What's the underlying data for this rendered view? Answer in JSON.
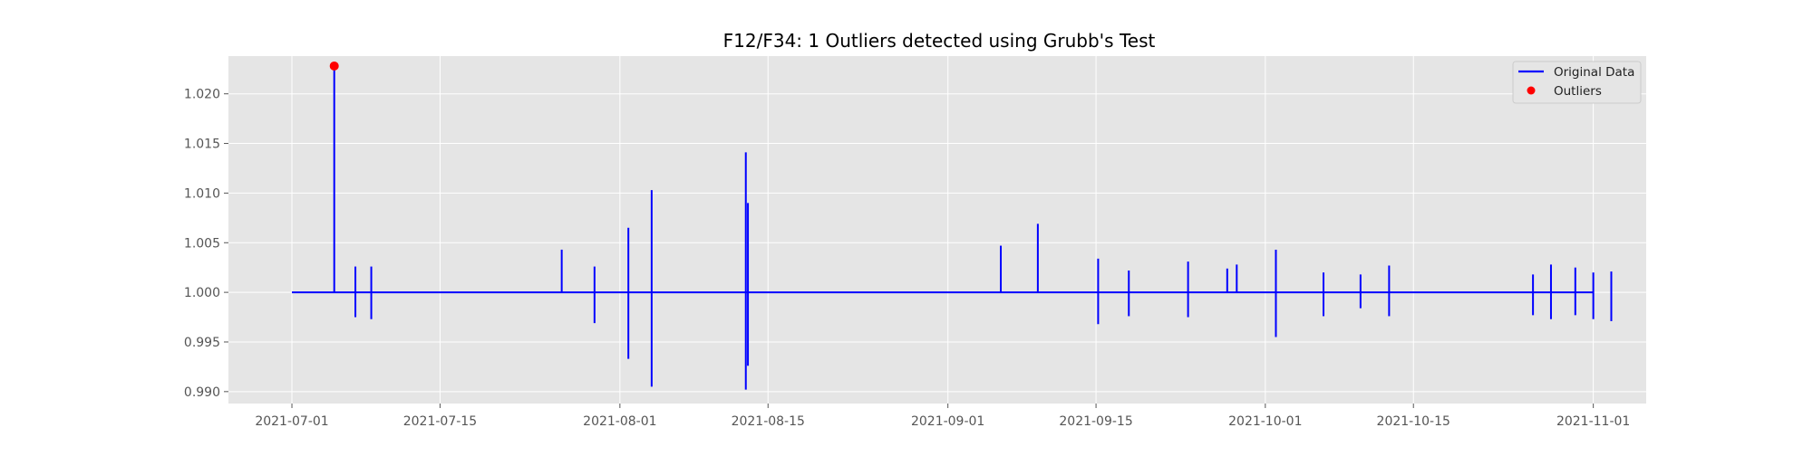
{
  "chart_data": {
    "type": "line",
    "title": "F12/F34: 1 Outliers detected using Grubb's Test",
    "xlabel": "",
    "ylabel": "",
    "x_range": [
      "2021-06-25",
      "2021-11-06"
    ],
    "ylim": [
      0.9888,
      1.0238
    ],
    "x_ticks": [
      "2021-07-01",
      "2021-07-15",
      "2021-08-01",
      "2021-08-15",
      "2021-09-01",
      "2021-09-15",
      "2021-10-01",
      "2021-10-15",
      "2021-11-01"
    ],
    "y_ticks": [
      0.99,
      0.995,
      1.0,
      1.005,
      1.01,
      1.015,
      1.02
    ],
    "y_tick_labels": [
      "0.990",
      "0.995",
      "1.000",
      "1.005",
      "1.010",
      "1.015",
      "1.020"
    ],
    "grid": true,
    "legend_position": "top-right",
    "baseline": 1.0,
    "series": [
      {
        "name": "Original Data",
        "color": "#0000ff",
        "spikes": [
          {
            "x": "2021-07-05",
            "lo": 1.0,
            "hi": 1.0228
          },
          {
            "x": "2021-07-07",
            "lo": 0.9975,
            "hi": 1.0026
          },
          {
            "x": "2021-07-08.5",
            "lo": 0.9973,
            "hi": 1.0026
          },
          {
            "x": "2021-07-26.5",
            "lo": 1.0,
            "hi": 1.0043
          },
          {
            "x": "2021-07-29.6",
            "lo": 0.9969,
            "hi": 1.0026
          },
          {
            "x": "2021-08-01.8",
            "lo": 0.9933,
            "hi": 1.0065
          },
          {
            "x": "2021-08-04.0",
            "lo": 0.9905,
            "hi": 1.0103
          },
          {
            "x": "2021-08-12.9",
            "lo": 0.9902,
            "hi": 1.0141
          },
          {
            "x": "2021-08-13.1",
            "lo": 0.9926,
            "hi": 1.009
          },
          {
            "x": "2021-09-06",
            "lo": 1.0,
            "hi": 1.0047
          },
          {
            "x": "2021-09-09.5",
            "lo": 1.0,
            "hi": 1.0069
          },
          {
            "x": "2021-09-15.2",
            "lo": 0.9968,
            "hi": 1.0034
          },
          {
            "x": "2021-09-18.1",
            "lo": 0.9976,
            "hi": 1.0022
          },
          {
            "x": "2021-09-23.7",
            "lo": 0.9975,
            "hi": 1.0031
          },
          {
            "x": "2021-09-27.4",
            "lo": 1.0,
            "hi": 1.0024
          },
          {
            "x": "2021-09-28.3",
            "lo": 1.0,
            "hi": 1.0028
          },
          {
            "x": "2021-10-02.0",
            "lo": 0.9955,
            "hi": 1.0043
          },
          {
            "x": "2021-10-06.5",
            "lo": 0.9976,
            "hi": 1.002
          },
          {
            "x": "2021-10-10.0",
            "lo": 0.9984,
            "hi": 1.0018
          },
          {
            "x": "2021-10-12.7",
            "lo": 0.9976,
            "hi": 1.0027
          },
          {
            "x": "2021-10-26.3",
            "lo": 0.9977,
            "hi": 1.0018
          },
          {
            "x": "2021-10-28.0",
            "lo": 0.9973,
            "hi": 1.0028
          },
          {
            "x": "2021-10-30.3",
            "lo": 0.9977,
            "hi": 1.0025
          },
          {
            "x": "2021-11-01.0",
            "lo": 0.9973,
            "hi": 1.002
          },
          {
            "x": "2021-11-02.7",
            "lo": 0.9971,
            "hi": 1.0021
          }
        ]
      },
      {
        "name": "Outliers",
        "color": "#ff0000",
        "points": [
          {
            "x": "2021-07-05",
            "y": 1.0228
          }
        ]
      }
    ]
  },
  "legend": {
    "items": [
      {
        "label": "Original Data",
        "marker": "line",
        "color": "#0000ff"
      },
      {
        "label": "Outliers",
        "marker": "dot",
        "color": "#ff0000"
      }
    ]
  },
  "colors": {
    "plot_background": "#e5e5e5",
    "grid": "#ffffff",
    "tick_text": "#555555",
    "title_text": "#000000"
  }
}
